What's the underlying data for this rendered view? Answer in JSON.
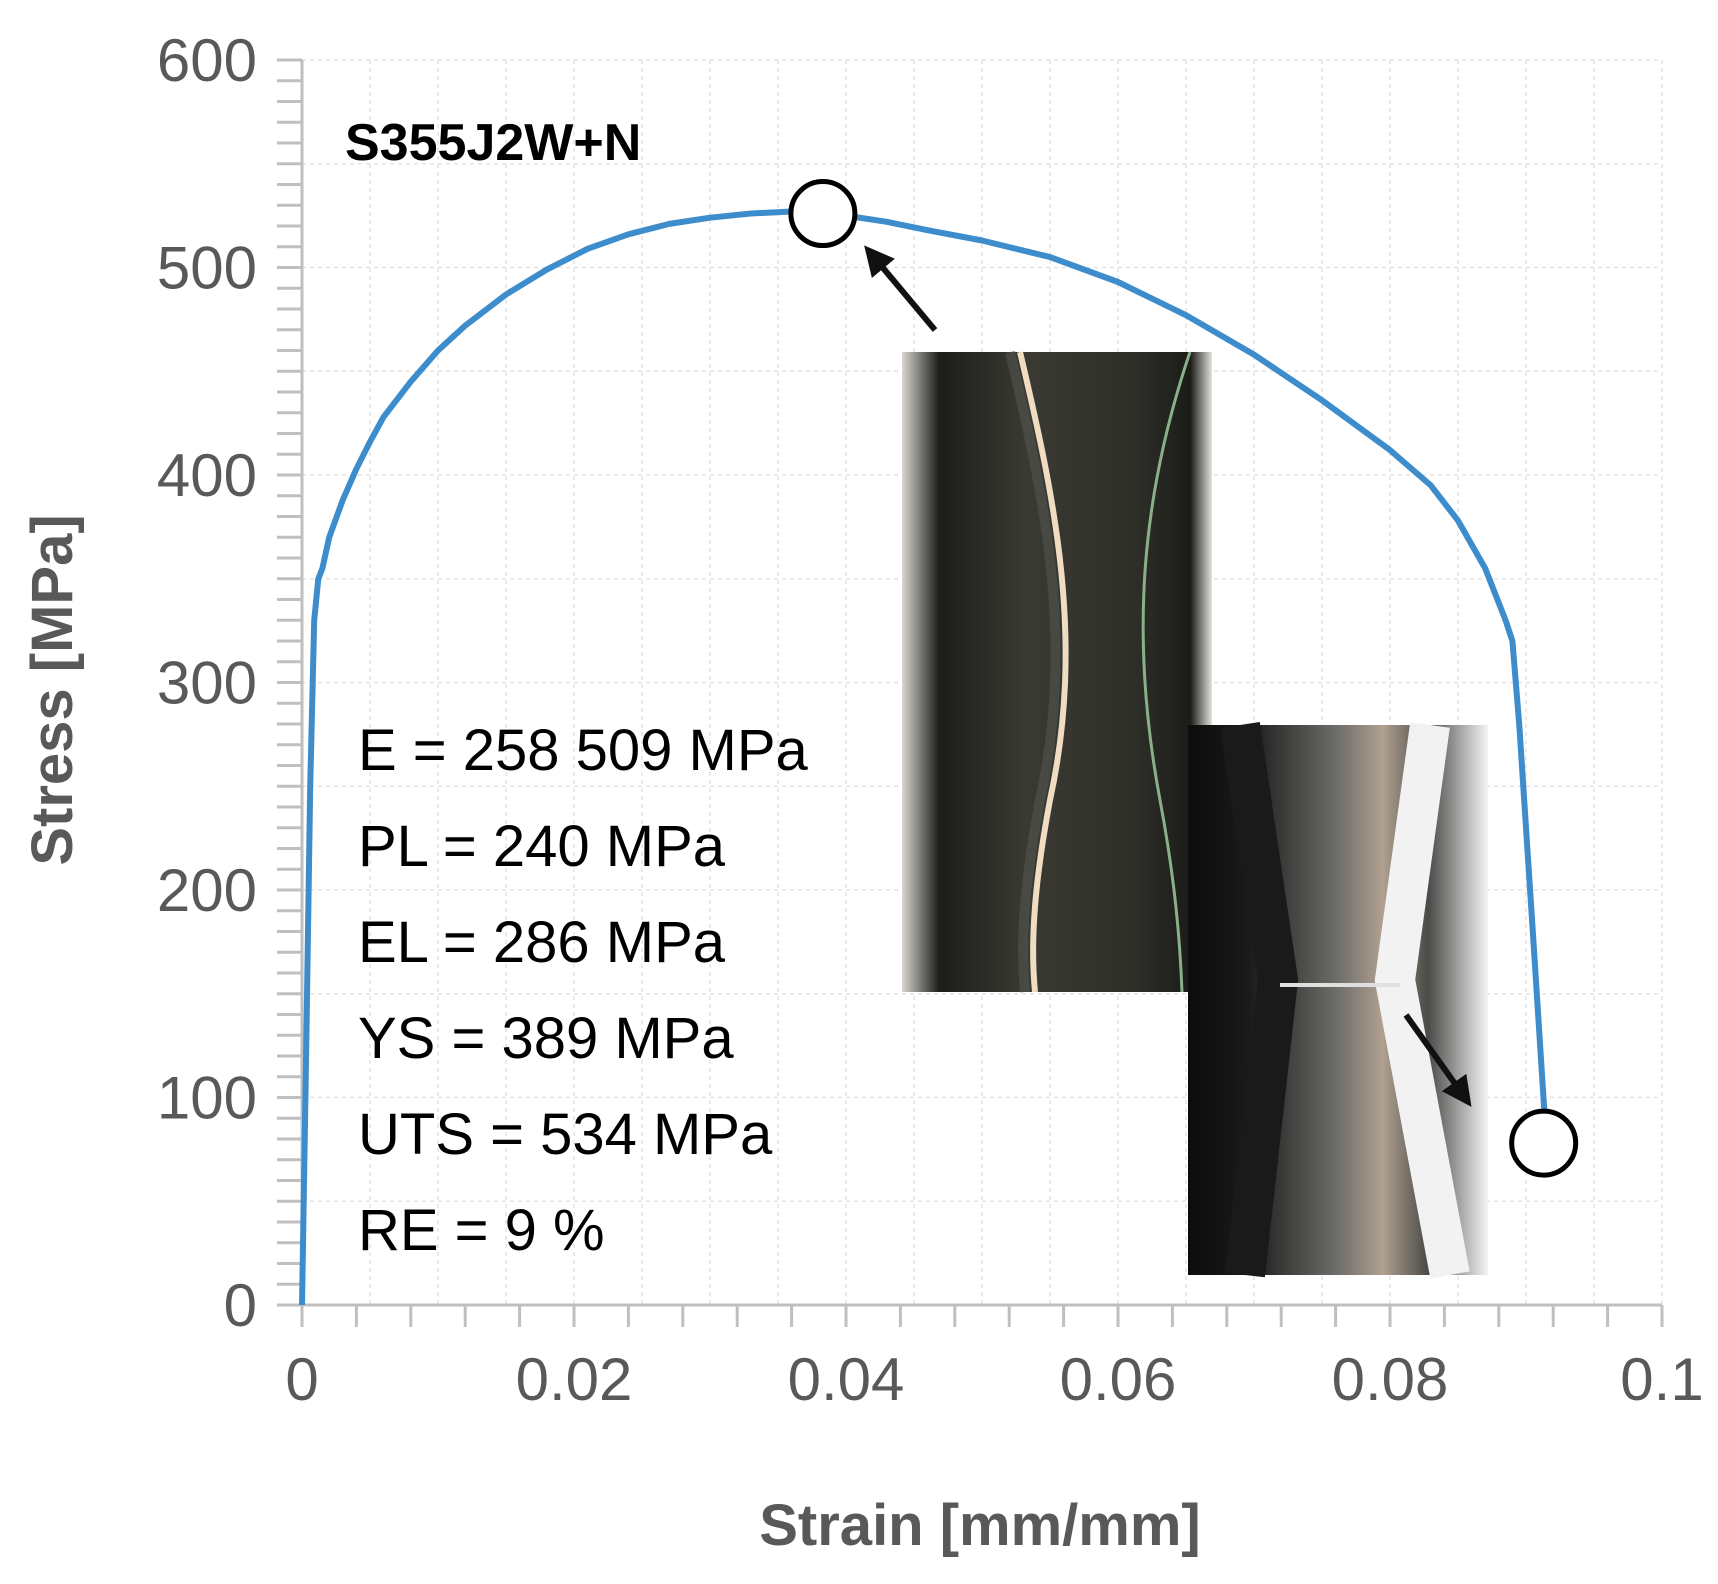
{
  "chart_data": {
    "type": "line",
    "title": "S355J2W+N",
    "xlabel": "Strain [mm/mm]",
    "ylabel": "Stress [MPa]",
    "xlim": [
      0,
      0.1
    ],
    "ylim": [
      0,
      600
    ],
    "xticks": [
      0,
      0.02,
      0.04,
      0.06,
      0.08,
      0.1
    ],
    "xtick_labels": [
      "0",
      "0.02",
      "0.04",
      "0.06",
      "0.08",
      "0.1"
    ],
    "yticks": [
      0,
      100,
      200,
      300,
      400,
      500,
      600
    ],
    "ytick_labels": [
      "0",
      "100",
      "200",
      "300",
      "400",
      "500",
      "600"
    ],
    "grid": true,
    "series_color": "#3d8ccc",
    "series": [
      {
        "x": [
          0,
          0.0003,
          0.0006,
          0.0009,
          0.0012,
          0.0015,
          0.002,
          0.003,
          0.004,
          0.005,
          0.006,
          0.008,
          0.01,
          0.012,
          0.015,
          0.018,
          0.021,
          0.024,
          0.027,
          0.03,
          0.033,
          0.036,
          0.038,
          0.04,
          0.043,
          0.046,
          0.05,
          0.055,
          0.06,
          0.065,
          0.07,
          0.075,
          0.08,
          0.083,
          0.085,
          0.087,
          0.0885,
          0.089,
          0.0895,
          0.0905,
          0.0915
        ],
        "y": [
          0,
          120,
          250,
          330,
          350,
          355,
          370,
          388,
          403,
          416,
          428,
          445,
          460,
          472,
          487,
          499,
          509,
          516,
          521,
          524,
          526,
          527,
          526,
          525,
          522,
          518,
          513,
          505,
          493,
          477,
          458,
          436,
          412,
          395,
          378,
          355,
          330,
          320,
          280,
          180,
          78
        ]
      }
    ],
    "markers": [
      {
        "x": 0.0383,
        "y": 526
      },
      {
        "x": 0.0913,
        "y": 78
      }
    ],
    "annotations": [
      "E = 258 509 MPa",
      "PL = 240 MPa",
      "EL = 286 MPa",
      "YS = 389 MPa",
      "UTS = 534 MPa",
      "RE = 9 %"
    ]
  },
  "images": {
    "specimen_uts_icon": "specimen-necking-photo-icon",
    "specimen_fracture_icon": "specimen-fracture-photo-icon"
  }
}
